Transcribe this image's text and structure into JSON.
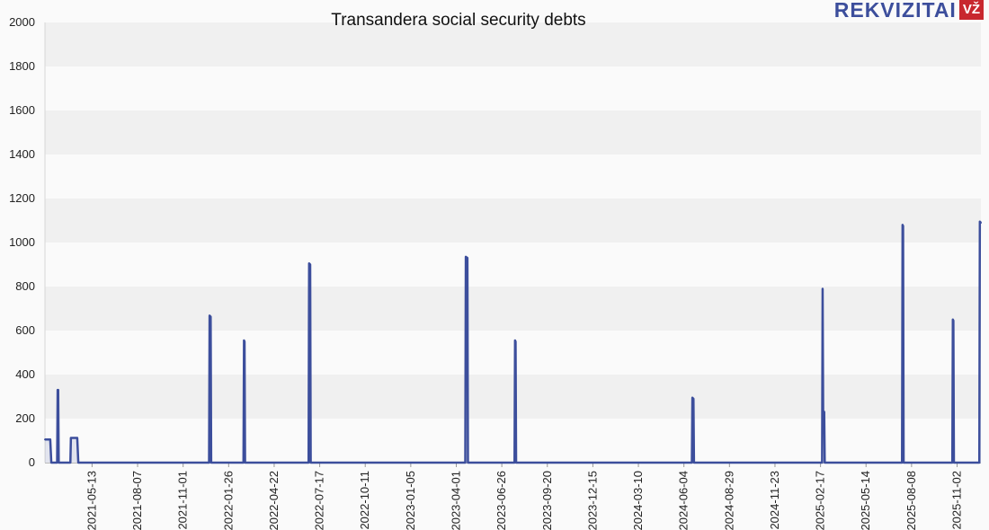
{
  "branding": {
    "logo_text": "REKVIZITAI",
    "logo_badge": "VŽ"
  },
  "chart_data": {
    "type": "area",
    "title": "Transandera social security debts",
    "xlabel": "",
    "ylabel": "",
    "ylim": [
      0,
      2000
    ],
    "yticks": [
      0,
      200,
      400,
      600,
      800,
      1000,
      1200,
      1400,
      1600,
      1800,
      2000
    ],
    "xlim": [
      "2021-02-13",
      "2025-12-17"
    ],
    "xticks": [
      "2021-05-13",
      "2021-08-07",
      "2021-11-01",
      "2022-01-26",
      "2022-04-22",
      "2022-07-17",
      "2022-10-11",
      "2023-01-05",
      "2023-04-01",
      "2023-06-26",
      "2023-09-20",
      "2023-12-15",
      "2024-03-10",
      "2024-06-04",
      "2024-08-29",
      "2024-11-23",
      "2025-02-17",
      "2025-05-14",
      "2025-08-08",
      "2025-11-02"
    ],
    "grid": true,
    "series": [
      {
        "color": "#3c4e9c",
        "points": [
          [
            "2021-02-13",
            105
          ],
          [
            "2021-02-23",
            105
          ],
          [
            "2021-02-25",
            0
          ],
          [
            "2021-03-08",
            0
          ],
          [
            "2021-03-09",
            330
          ],
          [
            "2021-03-10",
            330
          ],
          [
            "2021-03-11",
            0
          ],
          [
            "2021-04-02",
            0
          ],
          [
            "2021-04-03",
            112
          ],
          [
            "2021-04-15",
            112
          ],
          [
            "2021-04-17",
            0
          ],
          [
            "2021-12-20",
            0
          ],
          [
            "2021-12-21",
            668
          ],
          [
            "2021-12-23",
            663
          ],
          [
            "2021-12-24",
            0
          ],
          [
            "2022-02-23",
            0
          ],
          [
            "2022-02-24",
            555
          ],
          [
            "2022-02-25",
            550
          ],
          [
            "2022-02-26",
            0
          ],
          [
            "2022-06-26",
            0
          ],
          [
            "2022-06-27",
            905
          ],
          [
            "2022-06-29",
            900
          ],
          [
            "2022-06-30",
            0
          ],
          [
            "2023-04-18",
            0
          ],
          [
            "2023-04-19",
            935
          ],
          [
            "2023-04-22",
            930
          ],
          [
            "2023-04-23",
            0
          ],
          [
            "2023-07-20",
            0
          ],
          [
            "2023-07-21",
            555
          ],
          [
            "2023-07-22",
            550
          ],
          [
            "2023-07-23",
            0
          ],
          [
            "2024-06-19",
            0
          ],
          [
            "2024-06-20",
            295
          ],
          [
            "2024-06-22",
            290
          ],
          [
            "2024-06-23",
            0
          ],
          [
            "2025-02-20",
            0
          ],
          [
            "2025-02-21",
            790
          ],
          [
            "2025-02-22",
            235
          ],
          [
            "2025-02-24",
            230
          ],
          [
            "2025-02-25",
            0
          ],
          [
            "2025-07-21",
            0
          ],
          [
            "2025-07-22",
            1080
          ],
          [
            "2025-07-23",
            1075
          ],
          [
            "2025-07-24",
            0
          ],
          [
            "2025-10-24",
            0
          ],
          [
            "2025-10-25",
            650
          ],
          [
            "2025-10-26",
            645
          ],
          [
            "2025-10-27",
            0
          ],
          [
            "2025-12-14",
            0
          ],
          [
            "2025-12-15",
            1095
          ],
          [
            "2025-12-17",
            1090
          ]
        ]
      }
    ]
  }
}
